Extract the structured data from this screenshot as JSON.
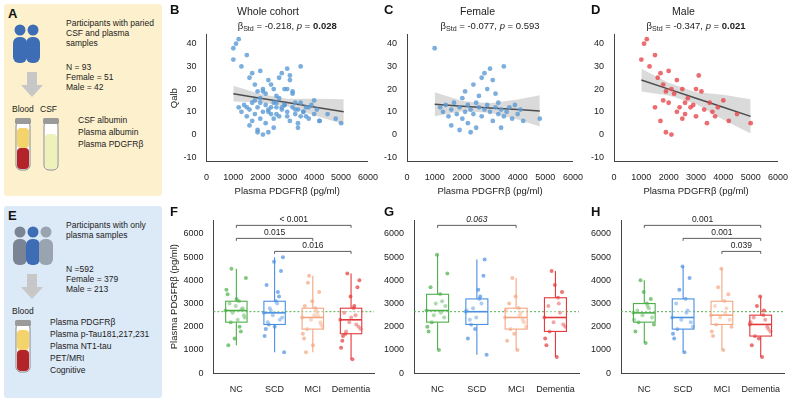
{
  "diagrams": {
    "A": {
      "letter": "A",
      "heading": "Participants with paried CSF and plasma samples",
      "counts": [
        "N = 93",
        "Female = 51",
        "Male = 42"
      ],
      "samples": [
        "Blood",
        "CSF"
      ],
      "measures": [
        "CSF albumin",
        "Plasma albumin",
        "Plasma PDGFRβ"
      ]
    },
    "E": {
      "letter": "E",
      "heading": "Participants with only plasma samples",
      "counts": [
        "N =592",
        "Female = 379",
        "Male = 213"
      ],
      "samples": [
        "Blood"
      ],
      "measures": [
        "Plasma PDGFRβ",
        "Plasma p-Tau181,217,231",
        "Plasma NT1-tau",
        "PET/MRI",
        "Cognitive"
      ]
    }
  },
  "chart_data": [
    {
      "type": "scatter",
      "letter": "B",
      "title": "Whole cohort",
      "annotation": [
        {
          "text": "β"
        },
        {
          "text": "Std",
          "sub": true
        },
        {
          "text": " = -0.218, "
        },
        {
          "text": "p",
          "italic": true
        },
        {
          "text": " = "
        },
        {
          "text": "0.028",
          "bold": true
        }
      ],
      "x_label": "Plasma PDGFRβ (pg/ml)",
      "y_label": "Qalb",
      "color": "#5b9bd5",
      "x": [
        1000,
        1200,
        1300,
        1400,
        1500,
        1600,
        1700,
        1800,
        1900,
        2000,
        2000,
        2100,
        2200,
        2200,
        2300,
        2400,
        2400,
        2500,
        2500,
        2600,
        2700,
        2700,
        2800,
        2800,
        2900,
        3000,
        3000,
        3100,
        3100,
        3200,
        3200,
        3300,
        3300,
        3400,
        3500,
        3500,
        3600,
        3700,
        3800,
        3900,
        4000,
        4100,
        4200,
        4800,
        1900,
        2300,
        2600,
        2100,
        1600,
        3400,
        2900,
        1000,
        1100,
        1200,
        1300,
        1500,
        1600,
        1700,
        1800,
        1800,
        1900,
        2000,
        2000,
        2100,
        2200,
        2300,
        2300,
        2400,
        2500,
        2500,
        2600,
        2700,
        2800,
        2900,
        3000,
        3000,
        3100,
        3200,
        3300,
        3400,
        3500,
        3600,
        3700,
        3800,
        4000,
        4200,
        4500,
        1500,
        1900,
        2100,
        1700,
        2600,
        5000
      ],
      "values": [
        38,
        12,
        10,
        13,
        8,
        11,
        14,
        9,
        12,
        16,
        7,
        10,
        13,
        5,
        11,
        9,
        22,
        14,
        3,
        12,
        25,
        8,
        11,
        27,
        13,
        29,
        10,
        24,
        6,
        12,
        18,
        9,
        14,
        11,
        8,
        30,
        10,
        12,
        7,
        13,
        9,
        11,
        6,
        7,
        2,
        1,
        17,
        19,
        4,
        3,
        20,
        33,
        40,
        42,
        30,
        35,
        25,
        27,
        22,
        15,
        19,
        28,
        14,
        20,
        18,
        24,
        10,
        12,
        20,
        7,
        9,
        16,
        12,
        13,
        20,
        8,
        26,
        19,
        11,
        5,
        14,
        10,
        8,
        12,
        15,
        6,
        9,
        12,
        1,
        0,
        6,
        14,
        5
      ],
      "fit": {
        "x": [
          1000,
          2000,
          3000,
          4000,
          5100
        ],
        "y": [
          18,
          16,
          14.1,
          12.1,
          10
        ],
        "lower": [
          14.5,
          14.2,
          12.4,
          8.5,
          4.5
        ],
        "upper": [
          21.5,
          17.9,
          15.8,
          15.8,
          15.5
        ]
      },
      "xlim": [
        0,
        6000
      ],
      "xticks": [
        0,
        1000,
        2000,
        3000,
        4000,
        5000,
        6000
      ],
      "ylim": [
        -12,
        44
      ],
      "yticks": [
        -10,
        0,
        10,
        20,
        30,
        40
      ],
      "grid": false
    },
    {
      "type": "scatter",
      "letter": "C",
      "title": "Female",
      "annotation": [
        {
          "text": "β"
        },
        {
          "text": "Std",
          "sub": true
        },
        {
          "text": " = -0.077, "
        },
        {
          "text": "p",
          "italic": true
        },
        {
          "text": " = "
        },
        {
          "text": "0.593"
        }
      ],
      "x_label": "Plasma PDGFRβ (pg/ml)",
      "color": "#5b9bd5",
      "x": [
        1000,
        1200,
        1300,
        1400,
        1500,
        1600,
        1700,
        1800,
        1900,
        2000,
        2000,
        2100,
        2200,
        2200,
        2300,
        2400,
        2400,
        2500,
        2500,
        2600,
        2700,
        2700,
        2800,
        2800,
        2900,
        3000,
        3000,
        3100,
        3100,
        3200,
        3200,
        3300,
        3300,
        3400,
        3500,
        3500,
        3600,
        3700,
        3800,
        3900,
        4000,
        4100,
        4200,
        4800,
        1900,
        2300,
        2600,
        2100,
        1600,
        3400,
        2900
      ],
      "values": [
        38,
        12,
        10,
        13,
        8,
        11,
        14,
        9,
        12,
        16,
        7,
        10,
        13,
        5,
        11,
        9,
        22,
        14,
        3,
        12,
        25,
        8,
        11,
        27,
        13,
        29,
        10,
        24,
        6,
        12,
        18,
        9,
        14,
        11,
        8,
        30,
        10,
        12,
        7,
        13,
        9,
        11,
        6,
        7,
        2,
        1,
        17,
        19,
        4,
        3,
        20
      ],
      "fit": {
        "x": [
          1000,
          2000,
          3000,
          4000,
          4800
        ],
        "y": [
          13.3,
          12.5,
          11.7,
          11,
          10.4
        ],
        "lower": [
          8,
          10.2,
          9.6,
          6.6,
          3.5
        ],
        "upper": [
          18.6,
          14.8,
          13.8,
          15.4,
          17.3
        ]
      },
      "xlim": [
        0,
        6000
      ],
      "xticks": [
        0,
        1000,
        2000,
        3000,
        4000,
        5000,
        6000
      ],
      "ylim": [
        -12,
        44
      ],
      "yticks": [
        -10,
        0,
        10,
        20,
        30,
        40
      ],
      "grid": false
    },
    {
      "type": "scatter",
      "letter": "D",
      "title": "Male",
      "annotation": [
        {
          "text": "β"
        },
        {
          "text": "Std",
          "sub": true
        },
        {
          "text": " = -0.347, "
        },
        {
          "text": "p",
          "italic": true
        },
        {
          "text": " = "
        },
        {
          "text": "0.021",
          "bold": true
        }
      ],
      "x_label": "Plasma PDGFRβ (pg/ml)",
      "color": "#e8474c",
      "x": [
        1000,
        1100,
        1200,
        1300,
        1500,
        1600,
        1700,
        1800,
        1800,
        1900,
        2000,
        2000,
        2100,
        2200,
        2300,
        2300,
        2400,
        2500,
        2500,
        2600,
        2700,
        2800,
        2900,
        3000,
        3000,
        3100,
        3200,
        3300,
        3400,
        3500,
        3600,
        3700,
        3800,
        4000,
        4200,
        4500,
        1500,
        1900,
        2100,
        1700,
        2600,
        5000
      ],
      "values": [
        33,
        40,
        42,
        30,
        35,
        25,
        27,
        22,
        15,
        19,
        28,
        14,
        20,
        18,
        24,
        10,
        12,
        20,
        7,
        9,
        16,
        12,
        13,
        20,
        8,
        26,
        19,
        11,
        5,
        14,
        10,
        8,
        12,
        15,
        6,
        9,
        12,
        1,
        0,
        6,
        14,
        5
      ],
      "fit": {
        "x": [
          1000,
          2000,
          3000,
          4000,
          5000
        ],
        "y": [
          24,
          20,
          16,
          12,
          8
        ],
        "lower": [
          19,
          17.2,
          13.4,
          6.5,
          0.5
        ],
        "upper": [
          29,
          22.8,
          18.6,
          17.5,
          15.5
        ]
      },
      "xlim": [
        0,
        6000
      ],
      "xticks": [
        0,
        1000,
        2000,
        3000,
        4000,
        5000,
        6000
      ],
      "ylim": [
        -12,
        44
      ],
      "yticks": [
        -10,
        0,
        10,
        20,
        30,
        40
      ],
      "grid": false
    },
    {
      "type": "box",
      "letter": "F",
      "y_label": "Plasma PDGFRβ (pg/ml)",
      "categories": [
        "NC",
        "SCD",
        "MCI",
        "Dementia"
      ],
      "colors": [
        "#4daf4a",
        "#4a90e2",
        "#f4a582",
        "#e23a3a"
      ],
      "boxes": [
        {
          "min": 1200,
          "q1": 2200,
          "median": 2700,
          "q3": 3100,
          "max": 4500
        },
        {
          "min": 900,
          "q1": 2100,
          "median": 2600,
          "q3": 3100,
          "max": 5000
        },
        {
          "min": 900,
          "q1": 1900,
          "median": 2400,
          "q3": 2800,
          "max": 4200
        },
        {
          "min": 600,
          "q1": 1700,
          "median": 2300,
          "q3": 2800,
          "max": 4300
        }
      ],
      "points": [
        [
          2700,
          3100,
          2200,
          2500,
          2900,
          3400,
          1800,
          2600,
          4100,
          2300,
          3000,
          2800,
          1500,
          3600,
          2000,
          4500,
          2400,
          3200,
          1200,
          2750
        ],
        [
          2600,
          3000,
          2100,
          2400,
          4800,
          1900,
          3300,
          2700,
          900,
          3100,
          2200,
          4400,
          2500,
          1600,
          3500,
          2800,
          5000,
          2000,
          3800,
          2300
        ],
        [
          2400,
          2800,
          1900,
          2200,
          3100,
          1500,
          2600,
          4200,
          2000,
          2500,
          900,
          3500,
          2300,
          1700,
          2700,
          3900,
          2100,
          1200,
          2900,
          2450
        ],
        [
          2300,
          2800,
          1700,
          2000,
          3300,
          1400,
          2500,
          4300,
          1900,
          600,
          2600,
          3700,
          2200,
          1100,
          2900,
          1800,
          4000,
          2400,
          1600,
          2100
        ]
      ],
      "reference_line": {
        "value": 2650,
        "color": "#4daf4a",
        "line_style": "dotted"
      },
      "brackets": [
        {
          "from": "NC",
          "to": "Dementia",
          "label": "< 0.001"
        },
        {
          "from": "NC",
          "to": "MCI",
          "label": "0.015"
        },
        {
          "from": "SCD",
          "to": "Dementia",
          "label": "0.016"
        }
      ],
      "ylim": [
        0,
        6600
      ],
      "yticks": [
        0,
        1000,
        2000,
        3000,
        4000,
        5000,
        6000
      ],
      "grid": false
    },
    {
      "type": "box",
      "letter": "G",
      "categories": [
        "NC",
        "SCD",
        "MCI",
        "Dementia"
      ],
      "colors": [
        "#4daf4a",
        "#4a90e2",
        "#f4a582",
        "#e23a3a"
      ],
      "boxes": [
        {
          "min": 1000,
          "q1": 2200,
          "median": 2700,
          "q3": 3400,
          "max": 5100
        },
        {
          "min": 800,
          "q1": 2100,
          "median": 2650,
          "q3": 3200,
          "max": 4900
        },
        {
          "min": 1000,
          "q1": 1900,
          "median": 2400,
          "q3": 2800,
          "max": 4100
        },
        {
          "min": 700,
          "q1": 1800,
          "median": 2400,
          "q3": 3250,
          "max": 4400
        }
      ],
      "points": [
        [
          2700,
          3400,
          2200,
          2900,
          5100,
          1800,
          3100,
          2500,
          4300,
          1000,
          3700,
          2400,
          3000,
          2000,
          2600
        ],
        [
          2650,
          3200,
          2100,
          4900,
          2400,
          1500,
          3000,
          2800,
          800,
          3600,
          2300,
          4200,
          1900,
          2700,
          3300
        ],
        [
          2400,
          2800,
          1900,
          2200,
          3300,
          1400,
          2600,
          4100,
          2000,
          1000,
          3000,
          2300,
          1700,
          2700,
          2500
        ],
        [
          2400,
          3250,
          1800,
          2100,
          3800,
          1200,
          2600,
          4400,
          2000,
          700,
          2900,
          3500,
          2200,
          1500,
          3000
        ]
      ],
      "reference_line": {
        "value": 2650,
        "color": "#4daf4a",
        "line_style": "dotted"
      },
      "brackets": [
        {
          "from": "NC",
          "to": "MCI",
          "label": "0.063",
          "italic": true
        }
      ],
      "ylim": [
        0,
        6600
      ],
      "yticks": [
        0,
        1000,
        2000,
        3000,
        4000,
        5000,
        6000
      ],
      "grid": false
    },
    {
      "type": "box",
      "letter": "H",
      "categories": [
        "NC",
        "SCD",
        "MCI",
        "Dementia"
      ],
      "colors": [
        "#4daf4a",
        "#4a90e2",
        "#f4a582",
        "#e23a3a"
      ],
      "boxes": [
        {
          "min": 1300,
          "q1": 2200,
          "median": 2600,
          "q3": 3000,
          "max": 4000
        },
        {
          "min": 900,
          "q1": 1900,
          "median": 2400,
          "q3": 3200,
          "max": 4600
        },
        {
          "min": 1000,
          "q1": 2100,
          "median": 2500,
          "q3": 3100,
          "max": 4500
        },
        {
          "min": 700,
          "q1": 1600,
          "median": 2100,
          "q3": 2500,
          "max": 3300
        }
      ],
      "points": [
        [
          2600,
          3000,
          2200,
          2400,
          3500,
          1800,
          2800,
          4000,
          2100,
          1300,
          2700,
          3200,
          2500,
          2300,
          2900
        ],
        [
          2400,
          3200,
          1900,
          2200,
          4600,
          1500,
          2700,
          3600,
          2000,
          900,
          3000,
          4100,
          2300,
          1700,
          2600
        ],
        [
          2500,
          3100,
          2100,
          2300,
          4500,
          1600,
          2800,
          3700,
          2000,
          1000,
          2900,
          3400,
          2400,
          1800,
          2600
        ],
        [
          2100,
          2500,
          1600,
          1900,
          3300,
          1200,
          2300,
          2900,
          1800,
          700,
          2400,
          2000,
          1500,
          2200,
          2700
        ]
      ],
      "reference_line": {
        "value": 2650,
        "color": "#4daf4a",
        "line_style": "dotted"
      },
      "brackets": [
        {
          "from": "NC",
          "to": "Dementia",
          "label": "0.001"
        },
        {
          "from": "SCD",
          "to": "Dementia",
          "label": "0.001"
        },
        {
          "from": "MCI",
          "to": "Dementia",
          "label": "0.039"
        }
      ],
      "ylim": [
        0,
        6600
      ],
      "yticks": [
        0,
        1000,
        2000,
        3000,
        4000,
        5000,
        6000
      ],
      "grid": false
    }
  ]
}
